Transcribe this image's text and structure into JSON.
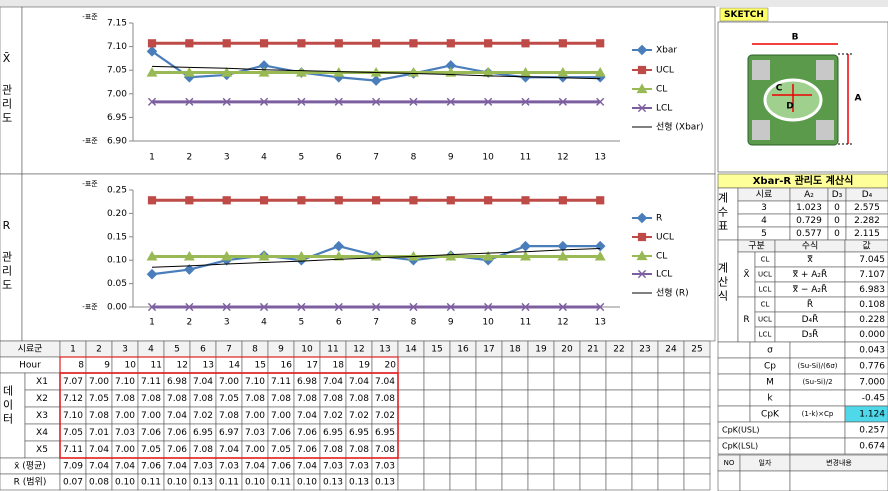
{
  "chart_data": [
    {
      "type": "line",
      "title": "X̄ 관리도",
      "notes": [
        "-표준",
        "-표준"
      ],
      "categories": [
        "1",
        "2",
        "3",
        "4",
        "5",
        "6",
        "7",
        "8",
        "9",
        "10",
        "11",
        "12",
        "13"
      ],
      "ylim": [
        6.9,
        7.15
      ],
      "yticks": [
        {
          "value": 6.9,
          "label": "6.90"
        },
        6.95,
        {
          "value": 7,
          "label": "7.00"
        },
        7.05,
        {
          "value": 7.1,
          "label": "7.10"
        },
        7.15
      ],
      "series": [
        {
          "name": "Xbar",
          "color": "#4a7ebb",
          "marker": "diamond",
          "values": [
            7.09,
            7.035,
            7.04,
            7.06,
            7.045,
            7.035,
            7.028,
            7.043,
            7.06,
            7.045,
            7.035,
            7.035,
            7.035
          ]
        },
        {
          "name": "UCL",
          "color": "#be4b48",
          "marker": "square",
          "values": [
            7.107,
            7.107,
            7.107,
            7.107,
            7.107,
            7.107,
            7.107,
            7.107,
            7.107,
            7.107,
            7.107,
            7.107,
            7.107
          ]
        },
        {
          "name": "CL",
          "color": "#98b954",
          "marker": "triangle",
          "values": [
            7.045,
            7.045,
            7.045,
            7.045,
            7.045,
            7.045,
            7.045,
            7.045,
            7.045,
            7.045,
            7.045,
            7.045,
            7.045
          ]
        },
        {
          "name": "LCL",
          "color": "#7d5fa0",
          "marker": "x",
          "values": [
            6.983,
            6.983,
            6.983,
            6.983,
            6.983,
            6.983,
            6.983,
            6.983,
            6.983,
            6.983,
            6.983,
            6.983,
            6.983
          ]
        },
        {
          "name": "선형 (Xbar)",
          "color": "#000000",
          "marker": "none",
          "values": [
            7.058,
            7.056,
            7.054,
            7.051,
            7.049,
            7.047,
            7.045,
            7.043,
            7.041,
            7.038,
            7.036,
            7.034,
            7.032
          ]
        }
      ]
    },
    {
      "type": "line",
      "title": "R 관리도",
      "notes": [
        "-표준",
        "-표준"
      ],
      "categories": [
        "1",
        "2",
        "3",
        "4",
        "5",
        "6",
        "7",
        "8",
        "9",
        "10",
        "11",
        "12",
        "13"
      ],
      "ylim": [
        0,
        0.25
      ],
      "yticks": [
        {
          "value": 0,
          "label": "0.00"
        },
        0.05,
        {
          "value": 0.1,
          "label": "0.10"
        },
        0.15,
        {
          "value": 0.2,
          "label": "0.20"
        },
        0.25
      ],
      "series": [
        {
          "name": "R",
          "color": "#4a7ebb",
          "marker": "diamond",
          "values": [
            0.07,
            0.08,
            0.1,
            0.11,
            0.1,
            0.13,
            0.11,
            0.1,
            0.11,
            0.1,
            0.13,
            0.13,
            0.13
          ]
        },
        {
          "name": "UCL",
          "color": "#be4b48",
          "marker": "square",
          "values": [
            0.228,
            0.228,
            0.228,
            0.228,
            0.228,
            0.228,
            0.228,
            0.228,
            0.228,
            0.228,
            0.228,
            0.228,
            0.228
          ]
        },
        {
          "name": "CL",
          "color": "#98b954",
          "marker": "triangle",
          "values": [
            0.108,
            0.108,
            0.108,
            0.108,
            0.108,
            0.108,
            0.108,
            0.108,
            0.108,
            0.108,
            0.108,
            0.108,
            0.108
          ]
        },
        {
          "name": "LCL",
          "color": "#7d5fa0",
          "marker": "x",
          "values": [
            0,
            0,
            0,
            0,
            0,
            0,
            0,
            0,
            0,
            0,
            0,
            0,
            0
          ]
        },
        {
          "name": "선형 (R)",
          "color": "#000000",
          "marker": "none",
          "values": [
            0.085,
            0.088,
            0.092,
            0.095,
            0.098,
            0.102,
            0.105,
            0.108,
            0.112,
            0.115,
            0.118,
            0.122,
            0.125
          ]
        }
      ]
    }
  ],
  "sheet": {
    "header": [
      "시료군",
      "1",
      "2",
      "3",
      "4",
      "5",
      "6",
      "7",
      "8",
      "9",
      "10",
      "11",
      "12",
      "13",
      "14",
      "15",
      "16",
      "17",
      "18",
      "19",
      "20",
      "21",
      "22",
      "23",
      "24",
      "25"
    ],
    "hour_label": "Hour",
    "hours": [
      "8",
      "9",
      "10",
      "11",
      "12",
      "13",
      "14",
      "15",
      "16",
      "17",
      "18",
      "19",
      "20"
    ],
    "data_label": "데이터",
    "rows": [
      {
        "label": "X1",
        "values": [
          "7.07",
          "7.00",
          "7.10",
          "7.11",
          "6.98",
          "7.04",
          "7.00",
          "7.10",
          "7.11",
          "6.98",
          "7.04",
          "7.04",
          "7.04"
        ]
      },
      {
        "label": "X2",
        "values": [
          "7.12",
          "7.05",
          "7.08",
          "7.08",
          "7.08",
          "7.08",
          "7.05",
          "7.08",
          "7.08",
          "7.08",
          "7.08",
          "7.08",
          "7.08"
        ]
      },
      {
        "label": "X3",
        "values": [
          "7.10",
          "7.08",
          "7.00",
          "7.00",
          "7.04",
          "7.02",
          "7.08",
          "7.00",
          "7.00",
          "7.04",
          "7.02",
          "7.02",
          "7.02"
        ]
      },
      {
        "label": "X4",
        "values": [
          "7.05",
          "7.01",
          "7.03",
          "7.06",
          "7.06",
          "6.95",
          "6.97",
          "7.03",
          "7.06",
          "7.06",
          "6.95",
          "6.95",
          "6.95"
        ]
      },
      {
        "label": "X5",
        "values": [
          "7.11",
          "7.04",
          "7.00",
          "7.05",
          "7.06",
          "7.08",
          "7.04",
          "7.00",
          "7.05",
          "7.06",
          "7.08",
          "7.08",
          "7.08"
        ]
      }
    ],
    "mean": {
      "label": "x̄ (평균)",
      "values": [
        "7.09",
        "7.04",
        "7.04",
        "7.06",
        "7.04",
        "7.03",
        "7.03",
        "7.04",
        "7.06",
        "7.04",
        "7.03",
        "7.03",
        "7.03"
      ]
    },
    "range": {
      "label": "R (범위)",
      "values": [
        "0.07",
        "0.08",
        "0.10",
        "0.11",
        "0.10",
        "0.13",
        "0.11",
        "0.10",
        "0.11",
        "0.10",
        "0.13",
        "0.13",
        "0.13"
      ]
    }
  },
  "sketch": {
    "title": "SKETCH",
    "labels": [
      "A",
      "B",
      "C",
      "D"
    ]
  },
  "calc": {
    "title": "Xbar-R 관리도 계산식",
    "coef": {
      "label": "계수표",
      "header": [
        "시료",
        "A₂",
        "D₃",
        "D₄"
      ],
      "rows": [
        [
          "3",
          "1.023",
          "0",
          "2.575"
        ],
        [
          "4",
          "0.729",
          "0",
          "2.282"
        ],
        [
          "5",
          "0.577",
          "0",
          "2.115"
        ]
      ]
    },
    "formula": {
      "label": "계산식",
      "header": [
        "구분",
        "수식",
        "값"
      ],
      "groups": [
        {
          "label": "X̄",
          "rows": [
            [
              "CL",
              "x̿",
              "7.045"
            ],
            [
              "UCL",
              "x̿ + A₂R̄",
              "7.107"
            ],
            [
              "LCL",
              "x̿ − A₂R̄",
              "6.983"
            ]
          ]
        },
        {
          "label": "R",
          "rows": [
            [
              "CL",
              "R̄",
              "0.108"
            ],
            [
              "UCL",
              "D₄R̄",
              "0.228"
            ],
            [
              "LCL",
              "D₃R̄",
              "0.000"
            ]
          ]
        }
      ]
    },
    "stats": [
      {
        "name": "σ",
        "value": "0.043"
      },
      {
        "name": "Cp",
        "formula": "(Su-Si)/(6σ)",
        "value": "0.776"
      },
      {
        "name": "M",
        "formula": "(Su-Si)/2",
        "value": "7.000"
      },
      {
        "name": "k",
        "value": "-0.45"
      },
      {
        "name": "CpK",
        "formula": "(1-k)×Cp",
        "value": "1.124"
      }
    ],
    "bounds": [
      [
        "CpK(USL)",
        "0.257"
      ],
      [
        "CpK(LSL)",
        "0.674"
      ]
    ]
  },
  "history": {
    "header": [
      "NO",
      "일자",
      "변경내용"
    ]
  }
}
